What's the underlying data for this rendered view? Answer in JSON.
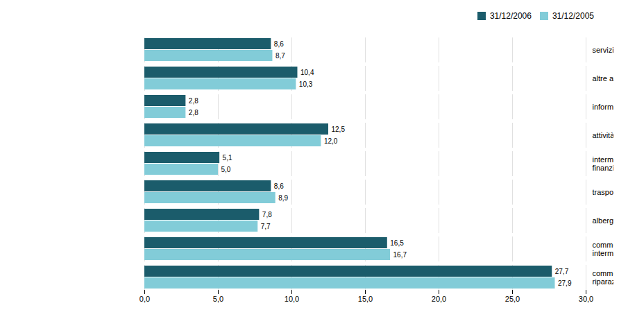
{
  "chart_data": {
    "type": "bar",
    "orientation": "horizontal",
    "categories": [
      "commercio al dettaglio e\nriparazioni",
      "commercio all'ingrosso e\nintermediari",
      "alberghi e ristorazione",
      "trasporti e comunicazioni",
      "intermediazione monetaria e\nfinanziaria",
      "attività immobiliari",
      "informatica e attività connesse",
      "altre attività imprenditoriali",
      "servizi alle persone"
    ],
    "series": [
      {
        "name": "31/12/2006",
        "color": "#1b5c6b",
        "values": [
          27.7,
          16.5,
          7.8,
          8.6,
          5.1,
          12.5,
          2.8,
          10.4,
          8.6
        ],
        "value_labels": [
          "27,7",
          "16,5",
          "7,8",
          "8,6",
          "5,1",
          "12,5",
          "2,8",
          "10,4",
          "8,6"
        ]
      },
      {
        "name": "31/12/2005",
        "color": "#82ccd8",
        "values": [
          27.9,
          16.7,
          7.7,
          8.9,
          5.0,
          12.0,
          2.8,
          10.3,
          8.7
        ],
        "value_labels": [
          "27,9",
          "16,7",
          "7,7",
          "8,9",
          "5,0",
          "12,0",
          "2,8",
          "10,3",
          "8,7"
        ]
      }
    ],
    "xlim": [
      0,
      30
    ],
    "xticks": [
      {
        "value": 0,
        "label": "0,0"
      },
      {
        "value": 5,
        "label": "5,0"
      },
      {
        "value": 10,
        "label": "10,0"
      },
      {
        "value": 15,
        "label": "15,0"
      },
      {
        "value": 20,
        "label": "20,0"
      },
      {
        "value": 25,
        "label": "25,0"
      },
      {
        "value": 30,
        "label": "30,0"
      }
    ],
    "grid": true,
    "legend": "upper right",
    "data_labels": true
  }
}
